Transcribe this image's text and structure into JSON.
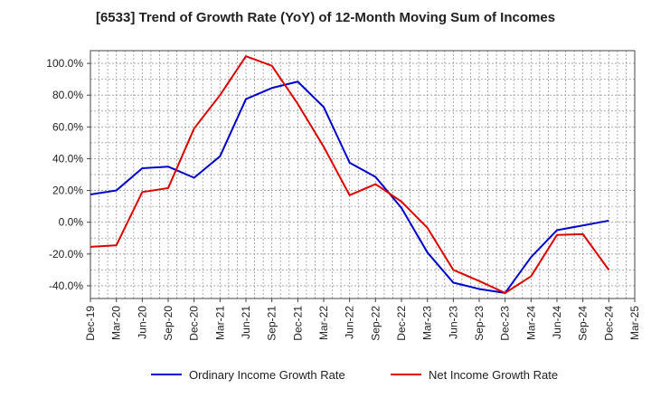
{
  "chart_data": {
    "type": "line",
    "title": "[6533]  Trend of Growth Rate (YoY) of 12-Month Moving Sum of Incomes",
    "xlabel": "",
    "ylabel": "",
    "x": [
      "Dec-19",
      "Mar-20",
      "Jun-20",
      "Sep-20",
      "Dec-20",
      "Mar-21",
      "Jun-21",
      "Sep-21",
      "Dec-21",
      "Mar-22",
      "Jun-22",
      "Sep-22",
      "Dec-22",
      "Mar-23",
      "Jun-23",
      "Sep-23",
      "Dec-23",
      "Mar-24",
      "Jun-24",
      "Sep-24",
      "Dec-24",
      "Mar-25"
    ],
    "ylim": [
      -48,
      108
    ],
    "y_ticks": [
      100,
      80,
      60,
      40,
      20,
      0,
      -20,
      -40
    ],
    "y_tick_labels": [
      "100.0%",
      "80.0%",
      "60.0%",
      "40.0%",
      "20.0%",
      "0.0%",
      "-20.0%",
      "-40.0%"
    ],
    "grid": true,
    "legend_position": "bottom",
    "series": [
      {
        "name": "Ordinary Income Growth Rate",
        "color": "#0000cc",
        "values": [
          17.5,
          20,
          34,
          35,
          28,
          41.5,
          77.5,
          84.5,
          88.5,
          72.5,
          37.5,
          28.5,
          9,
          -19,
          -38,
          -42,
          -44.5,
          -22,
          -5,
          -2,
          1,
          null
        ]
      },
      {
        "name": "Net Income Growth Rate",
        "color": "#dd0000",
        "values": [
          -15.5,
          -14.5,
          19,
          21.5,
          59,
          80,
          104.5,
          98.5,
          74.5,
          47.5,
          17,
          24,
          13,
          -3.5,
          -30,
          -37,
          -44.5,
          -34,
          -8,
          -7.5,
          -30,
          null
        ]
      }
    ]
  }
}
